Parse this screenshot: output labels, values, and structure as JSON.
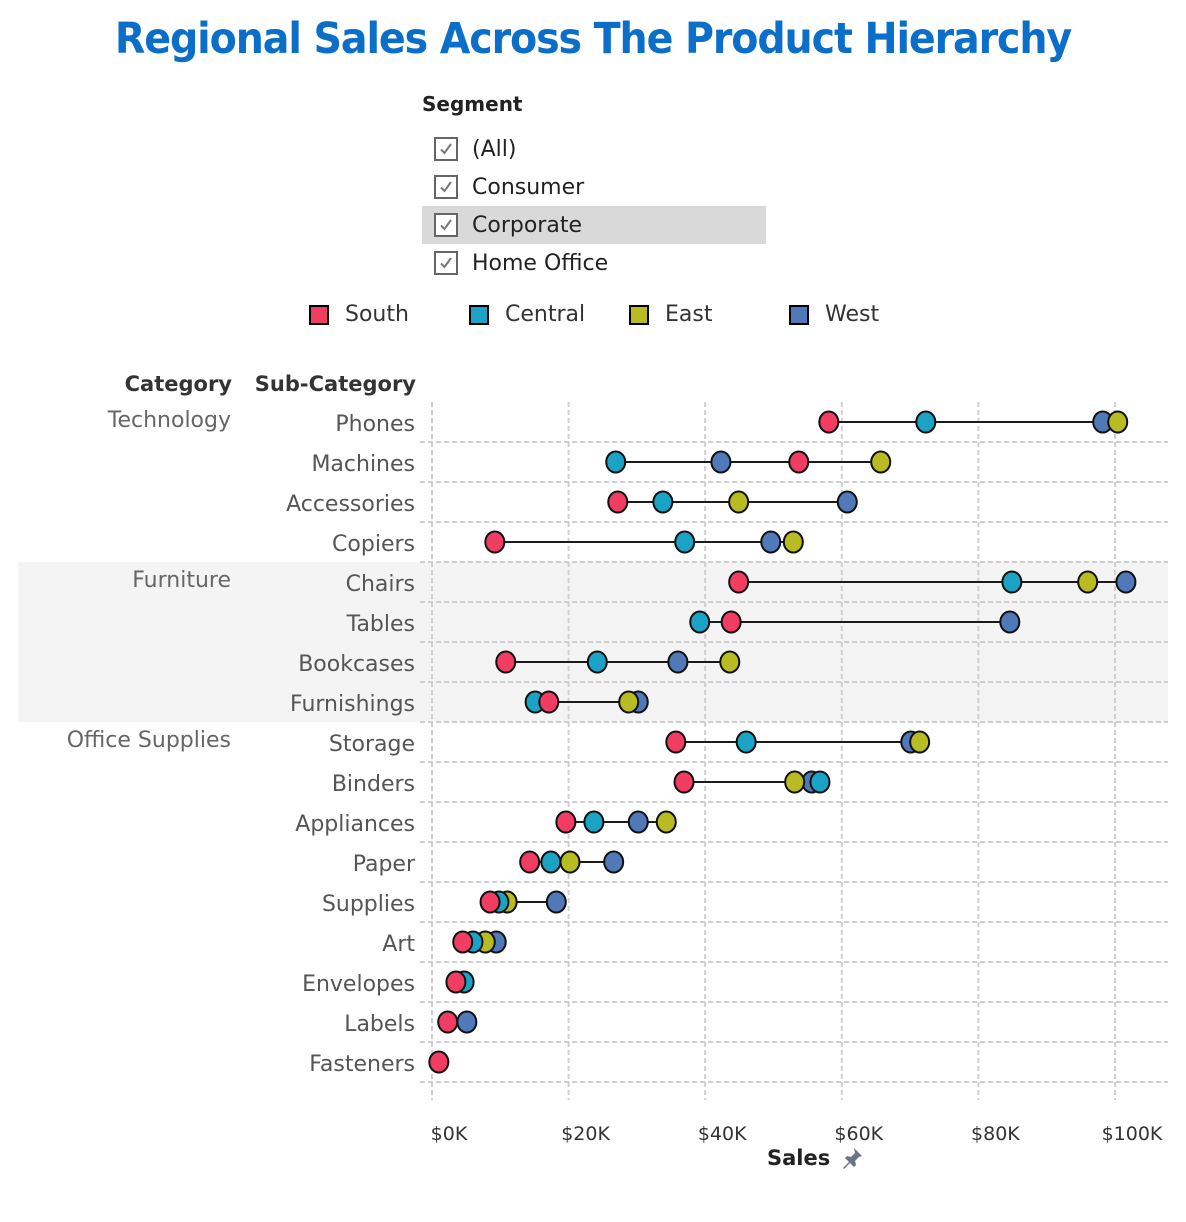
{
  "title": "Regional Sales Across The Product Hierarchy",
  "filter": {
    "title": "Segment",
    "items": [
      {
        "label": "(All)",
        "checked": true,
        "highlighted": false
      },
      {
        "label": "Consumer",
        "checked": true,
        "highlighted": false
      },
      {
        "label": "Corporate",
        "checked": true,
        "highlighted": true
      },
      {
        "label": "Home Office",
        "checked": true,
        "highlighted": false
      }
    ]
  },
  "headers": {
    "category": "Category",
    "subcategory": "Sub-Category"
  },
  "axis": {
    "title": "Sales",
    "pin_icon": "pin-icon"
  },
  "chart_data": {
    "type": "scatter",
    "subtype": "dot-plot (dumbbell)",
    "title": "Regional Sales Across The Product Hierarchy",
    "xlabel": "Sales",
    "ylabel": "Category / Sub-Category",
    "xlim": [
      0,
      107
    ],
    "x_unit": "$K",
    "x_ticks": [
      0,
      20,
      40,
      60,
      80,
      100
    ],
    "x_tick_labels": [
      "$0K",
      "$20K",
      "$40K",
      "$60K",
      "$80K",
      "$100K"
    ],
    "grid": true,
    "legend_position": "top",
    "series": [
      {
        "name": "South",
        "color": "#f23d63"
      },
      {
        "name": "Central",
        "color": "#1aa3c4"
      },
      {
        "name": "East",
        "color": "#b8bc22"
      },
      {
        "name": "West",
        "color": "#4f79b9"
      }
    ],
    "groups": [
      {
        "category": "Technology",
        "shaded": false,
        "rows": [
          {
            "sub": "Phones",
            "South": 58.1,
            "Central": 72.3,
            "East": 100.4,
            "West": 98.2
          },
          {
            "sub": "Machines",
            "South": 53.7,
            "Central": 26.9,
            "East": 65.7,
            "West": 42.3
          },
          {
            "sub": "Accessories",
            "South": 27.2,
            "Central": 33.8,
            "East": 44.9,
            "West": 60.8
          },
          {
            "sub": "Copiers",
            "South": 9.2,
            "Central": 37.0,
            "East": 52.9,
            "West": 49.6
          }
        ]
      },
      {
        "category": "Furniture",
        "shaded": true,
        "rows": [
          {
            "sub": "Chairs",
            "South": 44.9,
            "Central": 84.9,
            "East": 96.0,
            "West": 101.6
          },
          {
            "sub": "Tables",
            "South": 43.8,
            "Central": 39.2,
            "East": null,
            "West": 84.6
          },
          {
            "sub": "Bookcases",
            "South": 10.8,
            "Central": 24.2,
            "East": 43.6,
            "West": 36.0
          },
          {
            "sub": "Furnishings",
            "South": 17.1,
            "Central": 15.1,
            "East": 28.8,
            "West": 30.2
          }
        ]
      },
      {
        "category": "Office Supplies",
        "shaded": false,
        "rows": [
          {
            "sub": "Storage",
            "South": 35.7,
            "Central": 46.0,
            "East": 71.4,
            "West": 70.1
          },
          {
            "sub": "Binders",
            "South": 36.9,
            "Central": 56.8,
            "East": 53.1,
            "West": 55.6
          },
          {
            "sub": "Appliances",
            "South": 19.6,
            "Central": 23.7,
            "East": 34.3,
            "West": 30.2
          },
          {
            "sub": "Paper",
            "South": 14.3,
            "Central": 17.4,
            "East": 20.2,
            "West": 26.6
          },
          {
            "sub": "Supplies",
            "South": 8.5,
            "Central": 9.8,
            "East": 11.0,
            "West": 18.2
          },
          {
            "sub": "Art",
            "South": 4.5,
            "Central": 6.0,
            "East": 7.8,
            "West": 9.4
          },
          {
            "sub": "Envelopes",
            "South": 3.5,
            "Central": 4.7,
            "East": null,
            "West": null
          },
          {
            "sub": "Labels",
            "South": 2.3,
            "Central": null,
            "East": null,
            "West": 5.1
          },
          {
            "sub": "Fasteners",
            "South": 1.0,
            "Central": null,
            "East": null,
            "West": null
          }
        ]
      }
    ]
  }
}
